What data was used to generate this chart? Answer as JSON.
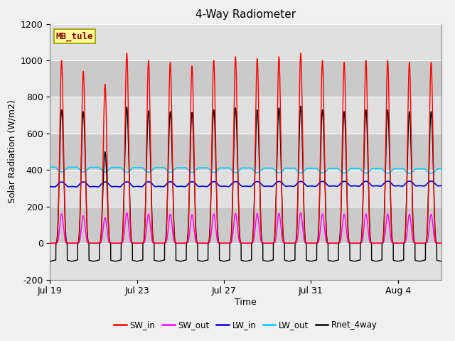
{
  "title": "4-Way Radiometer",
  "xlabel": "Time",
  "ylabel": "Solar Radiation (W/m2)",
  "ylim": [
    -200,
    1200
  ],
  "yticks": [
    -200,
    0,
    200,
    400,
    600,
    800,
    1000,
    1200
  ],
  "station_label": "MB_tule",
  "series": {
    "SW_in": {
      "color": "#ff0000",
      "lw": 1.0
    },
    "SW_out": {
      "color": "#ff00ff",
      "lw": 1.0
    },
    "LW_in": {
      "color": "#0000dd",
      "lw": 1.2
    },
    "LW_out": {
      "color": "#00ccff",
      "lw": 1.2
    },
    "Rnet_4way": {
      "color": "#000000",
      "lw": 1.0
    }
  },
  "n_days": 18,
  "SW_in_peaks": [
    1000,
    940,
    870,
    1040,
    1000,
    990,
    970,
    1000,
    1020,
    1010,
    1020,
    1040,
    1000,
    990,
    1000,
    1000,
    990,
    990
  ],
  "Rnet_peaks": [
    730,
    720,
    500,
    745,
    725,
    720,
    715,
    730,
    740,
    730,
    740,
    750,
    730,
    720,
    730,
    730,
    720,
    720
  ],
  "SW_out_ratio": 0.16,
  "LW_in_base": 310,
  "LW_in_bump": 25,
  "LW_out_base": 415,
  "LW_out_dip": 25,
  "Rnet_night": -100,
  "legend_entries": [
    "SW_in",
    "SW_out",
    "LW_in",
    "LW_out",
    "Rnet_4way"
  ],
  "legend_colors": [
    "#ff0000",
    "#ff00ff",
    "#0000dd",
    "#00ccff",
    "#000000"
  ],
  "xtick_labels": [
    "Jul 19",
    "Jul 23",
    "Jul 27",
    "Jul 31",
    "Aug 4"
  ],
  "xtick_positions": [
    0,
    4,
    8,
    12,
    16
  ]
}
